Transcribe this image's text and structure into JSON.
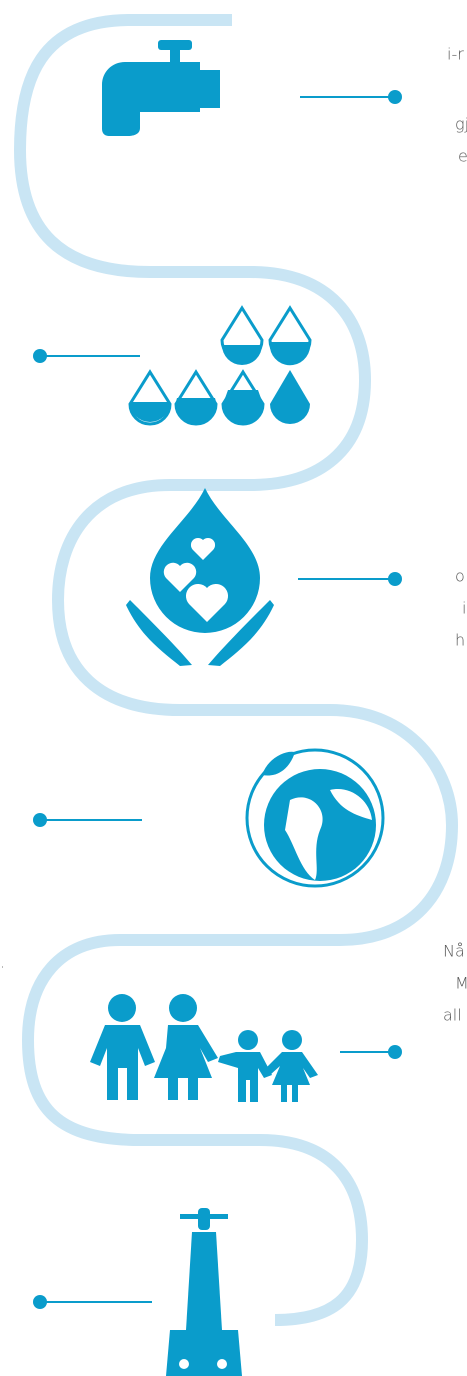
{
  "fragments": [
    "i-r",
    "gj",
    "e",
    "o",
    "i",
    "h",
    "Nå",
    "M",
    "all",
    "."
  ]
}
